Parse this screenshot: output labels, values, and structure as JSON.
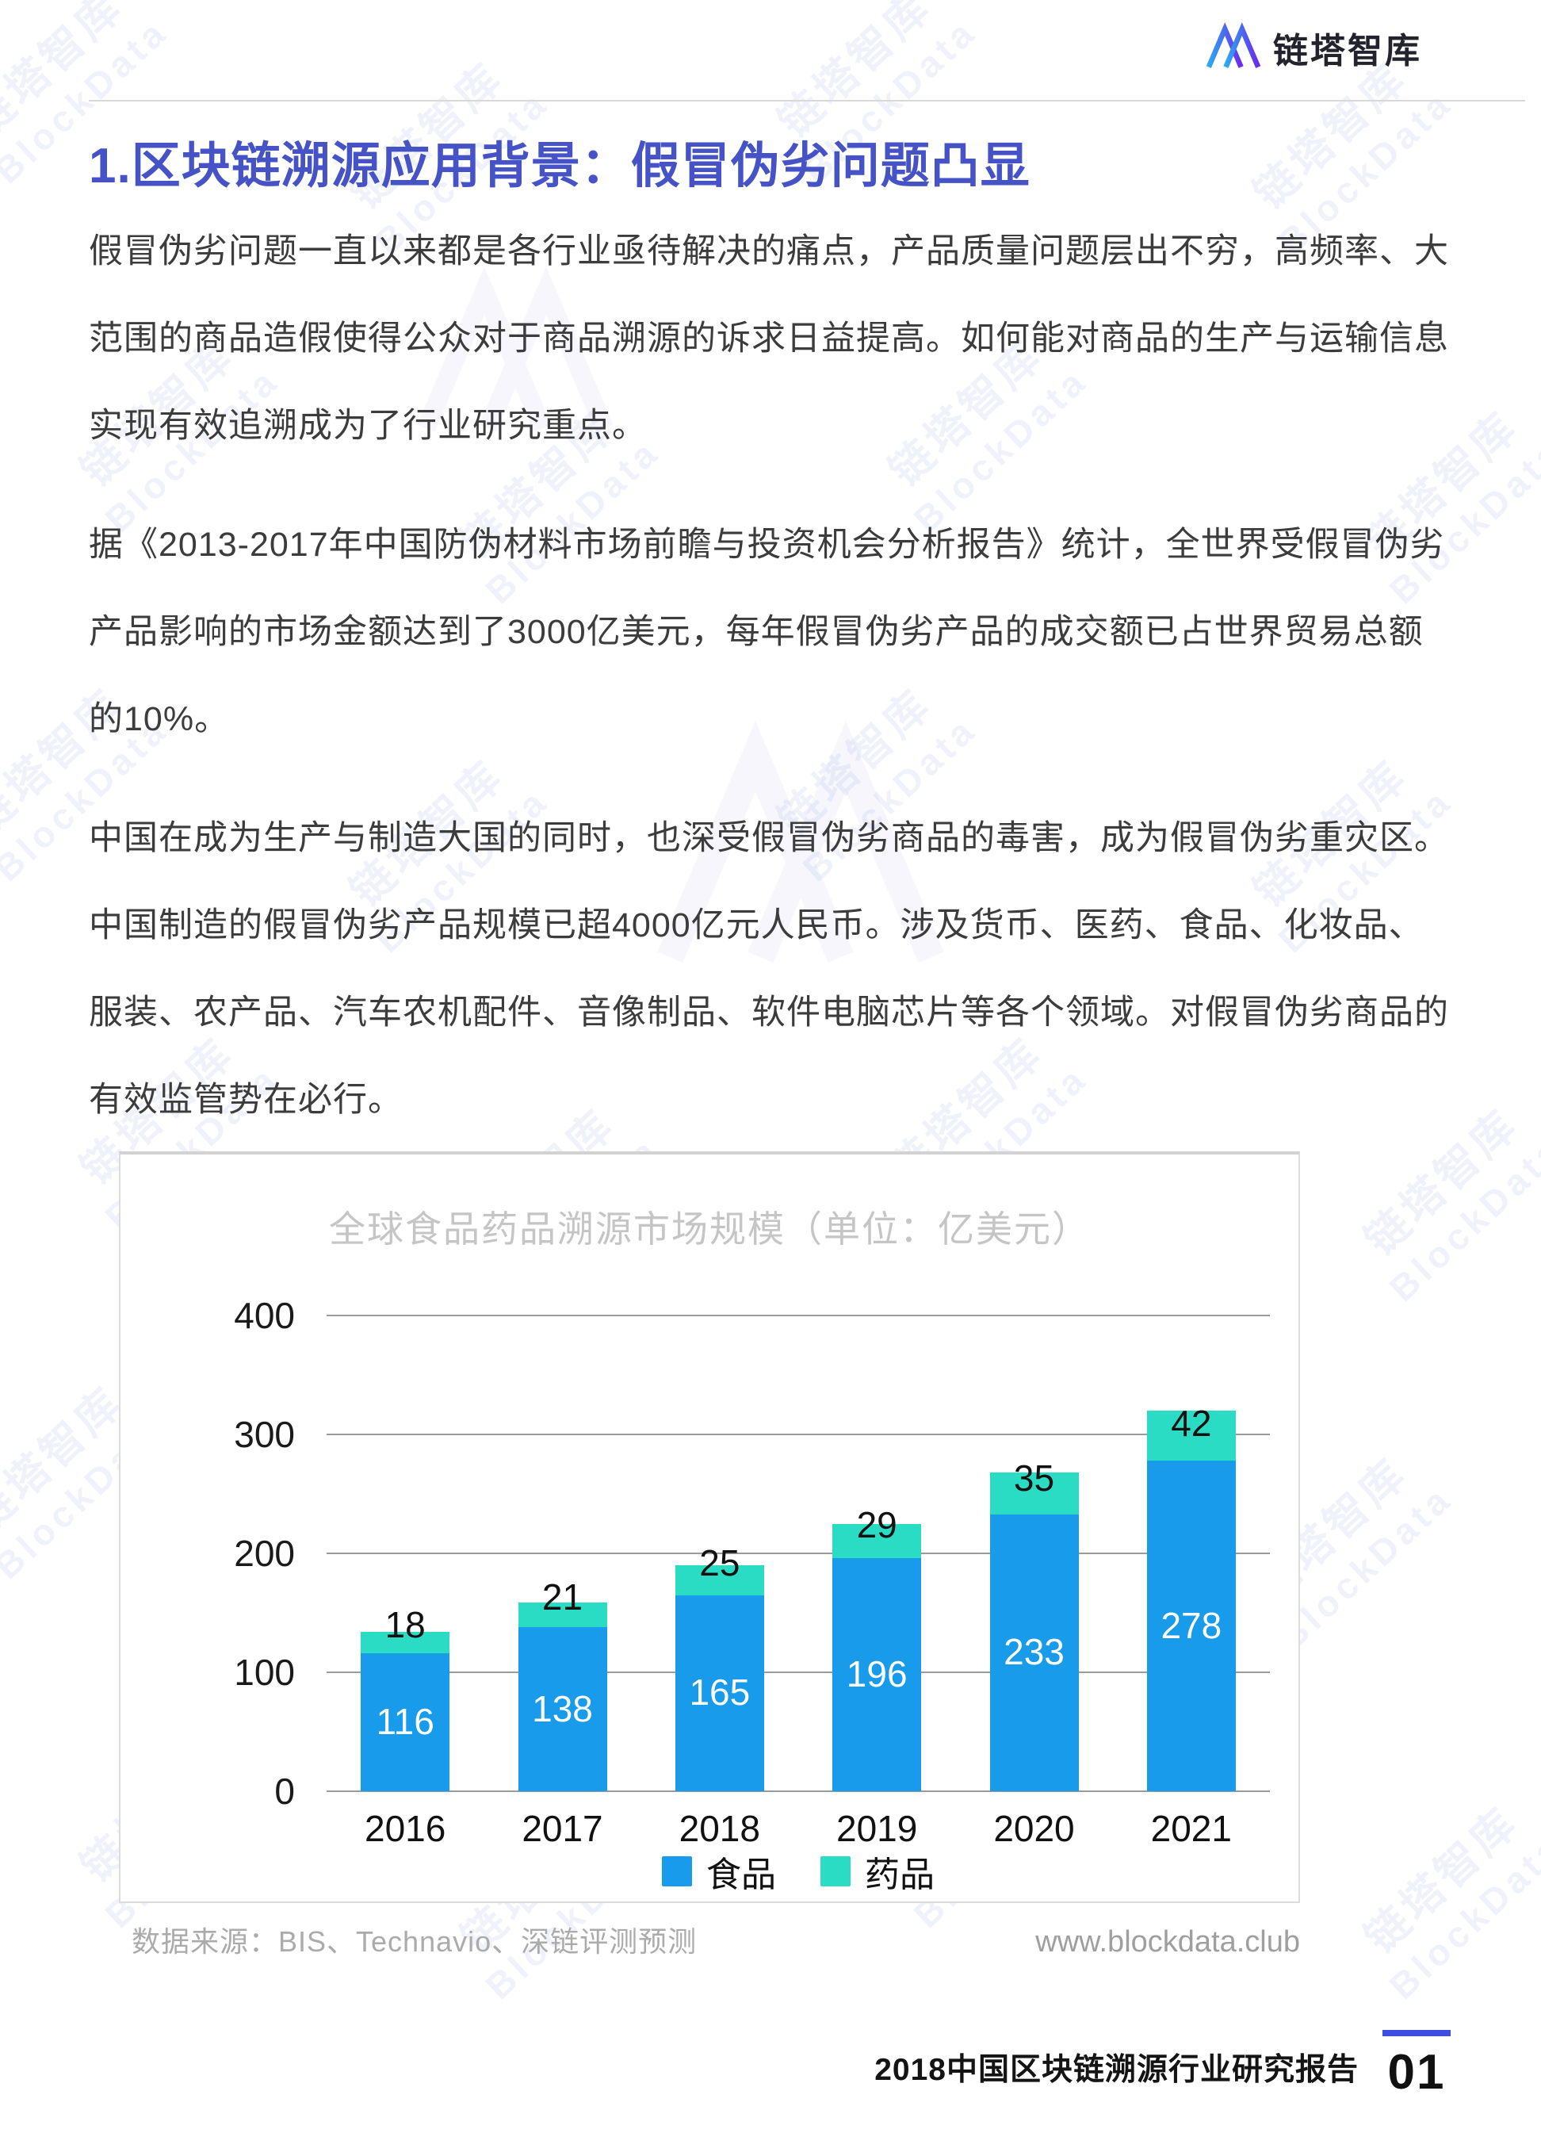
{
  "header": {
    "logo_text": "链塔智库"
  },
  "title": "1.区块链溯源应用背景：假冒伪劣问题凸显",
  "paragraphs": [
    "假冒伪劣问题一直以来都是各行业亟待解决的痛点，产品质量问题层出不穷，高频率、大范围的商品造假使得公众对于商品溯源的诉求日益提高。如何能对商品的生产与运输信息实现有效追溯成为了行业研究重点。",
    "据《2013-2017年中国防伪材料市场前瞻与投资机会分析报告》统计，全世界受假冒伪劣产品影响的市场金额达到了3000亿美元，每年假冒伪劣产品的成交额已占世界贸易总额的10%。",
    "中国在成为生产与制造大国的同时，也深受假冒伪劣商品的毒害，成为假冒伪劣重灾区。中国制造的假冒伪劣产品规模已超4000亿元人民币。涉及货币、医药、食品、化妆品、服装、农产品、汽车农机配件、音像制品、软件电脑芯片等各个领域。对假冒伪劣商品的有效监管势在必行。"
  ],
  "chart_data": {
    "type": "bar",
    "stacked": true,
    "title": "全球食品药品溯源市场规模（单位：亿美元）",
    "categories": [
      "2016",
      "2017",
      "2018",
      "2019",
      "2020",
      "2021"
    ],
    "series": [
      {
        "name": "食品",
        "color": "#189BEB",
        "values": [
          116,
          138,
          165,
          196,
          233,
          278
        ]
      },
      {
        "name": "药品",
        "color": "#2BDCC5",
        "values": [
          18,
          21,
          25,
          29,
          35,
          42
        ]
      }
    ],
    "ylim": [
      0,
      400
    ],
    "yticks": [
      0,
      100,
      200,
      300,
      400
    ],
    "grid": true,
    "legend_position": "bottom",
    "value_labels": true
  },
  "chart_footer": {
    "source": "数据来源：BIS、Technavio、深链评测预测",
    "website": "www.blockdata.club"
  },
  "page_footer": {
    "report_title": "2018中国区块链溯源行业研究报告",
    "page_number": "01"
  },
  "watermark": {
    "cn": "链塔智库",
    "en": "BlockData"
  },
  "colors": {
    "accent_title_blue": "#4553C6",
    "bar_food_blue": "#189BEB",
    "bar_medicine_teal": "#2BDCC5",
    "footer_accent_blue": "#3D4EE0",
    "logo_gradient_start": "#2CA9F2",
    "logo_gradient_end": "#6A2BEE"
  }
}
